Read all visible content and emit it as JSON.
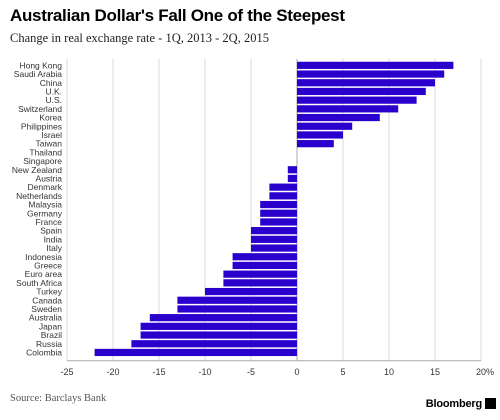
{
  "header": {
    "title": "Australian Dollar's Fall One of the Steepest",
    "subtitle": "Change in real exchange rate - 1Q, 2013 - 2Q, 2015"
  },
  "footer": {
    "source": "Source: Barclays Bank",
    "brand": "Bloomberg"
  },
  "colors": {
    "bar": "#2a00cc",
    "grid": "#d9d9d9",
    "axis": "#aaaaaa"
  },
  "chart_data": {
    "type": "bar",
    "orientation": "horizontal",
    "title": "Australian Dollar's Fall One of the Steepest",
    "subtitle": "Change in real exchange rate - 1Q, 2013 - 2Q, 2015",
    "xlabel": "",
    "ylabel": "",
    "xlim": [
      -25,
      20
    ],
    "xticks": [
      -25,
      -20,
      -15,
      -10,
      -5,
      0,
      5,
      10,
      15,
      20
    ],
    "xtick_labels": [
      "-25",
      "-20",
      "-15",
      "-10",
      "-5",
      "0",
      "5",
      "10",
      "15",
      "20%"
    ],
    "grid": "vertical",
    "legend": "none",
    "categories": [
      "Hong Kong",
      "Saudi Arabia",
      "China",
      "U.K.",
      "U.S.",
      "Switzerland",
      "Korea",
      "Philippines",
      "Israel",
      "Taiwan",
      "Thailand",
      "Singapore",
      "New Zealand",
      "Austria",
      "Denmark",
      "Netherlands",
      "Malaysia",
      "Germany",
      "France",
      "Spain",
      "India",
      "Italy",
      "Indonesia",
      "Greece",
      "Euro area",
      "South Africa",
      "Turkey",
      "Canada",
      "Sweden",
      "Australia",
      "Japan",
      "Brazil",
      "Russia",
      "Colombia"
    ],
    "values": [
      17,
      16,
      15,
      14,
      13,
      11,
      9,
      6,
      5,
      4,
      0,
      0,
      -1,
      -1,
      -3,
      -3,
      -4,
      -4,
      -4,
      -5,
      -5,
      -5,
      -7,
      -7,
      -8,
      -8,
      -10,
      -13,
      -13,
      -16,
      -17,
      -17,
      -18,
      -22
    ]
  }
}
